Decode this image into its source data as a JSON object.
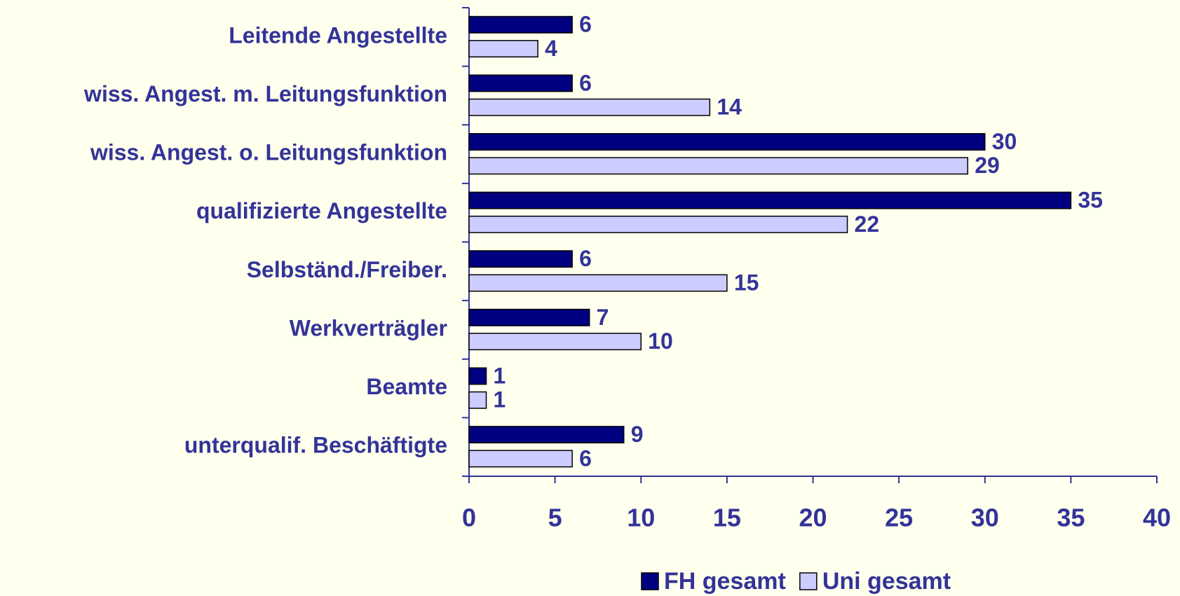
{
  "chart_data": {
    "type": "bar",
    "orientation": "horizontal",
    "categories": [
      "Leitende Angestellte",
      "wiss. Angest. m. Leitungsfunktion",
      "wiss. Angest. o. Leitungsfunktion",
      "qualifizierte Angestellte",
      "Selbständ./Freiber.",
      "Werkverträgler",
      "Beamte",
      "unterqualif. Beschäftigte"
    ],
    "series": [
      {
        "name": "FH gesamt",
        "color": "#000080",
        "values": [
          6,
          6,
          30,
          35,
          6,
          7,
          1,
          9
        ]
      },
      {
        "name": "Uni gesamt",
        "color": "#ccccff",
        "values": [
          4,
          14,
          29,
          22,
          15,
          10,
          1,
          6
        ]
      }
    ],
    "xlim": [
      0,
      40
    ],
    "xticks": [
      0,
      5,
      10,
      15,
      20,
      25,
      30,
      35,
      40
    ],
    "legend": "bottom"
  }
}
